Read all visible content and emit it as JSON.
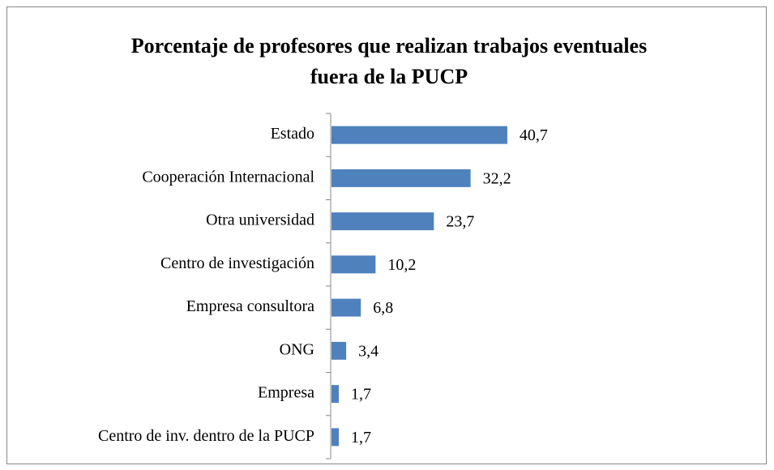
{
  "chart_data": {
    "type": "bar",
    "orientation": "horizontal",
    "title": "Porcentaje de profesores que realizan trabajos eventuales fuera de la PUCP",
    "categories": [
      "Estado",
      "Cooperación Internacional",
      "Otra universidad",
      "Centro de investigación",
      "Empresa consultora",
      "ONG",
      "Empresa",
      "Centro de inv. dentro de la PUCP"
    ],
    "values": [
      40.7,
      32.2,
      23.7,
      10.2,
      6.8,
      3.4,
      1.7,
      1.7
    ],
    "value_labels": [
      "40,7",
      "32,2",
      "23,7",
      "10,2",
      "6,8",
      "3,4",
      "1,7",
      "1,7"
    ],
    "color": "#4f81bd"
  }
}
